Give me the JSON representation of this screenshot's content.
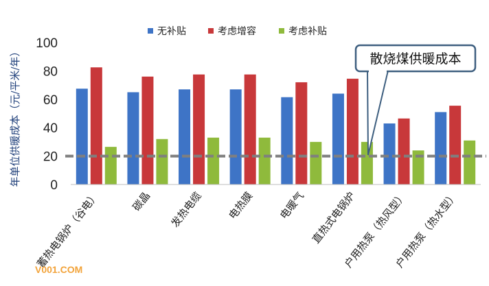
{
  "chart_data": {
    "type": "bar",
    "ylabel": "年单位供暖成本（元/平米/年）",
    "ylim": [
      0,
      100
    ],
    "yticks": [
      0,
      20,
      40,
      60,
      80,
      100
    ],
    "categories": [
      "蓄热电锅炉（谷电）",
      "碳晶",
      "发热电缆",
      "电热膜",
      "电暖气",
      "直热式电锅炉",
      "户用热泵（热风型）",
      "户用热泵（热水型）"
    ],
    "series": [
      {
        "name": "无补贴",
        "color": "#3e74c6",
        "values": [
          67.5,
          65,
          67,
          67,
          61.5,
          64,
          43,
          51
        ]
      },
      {
        "name": "考虑增容",
        "color": "#c8383a",
        "values": [
          82.5,
          76,
          77.5,
          77.5,
          72,
          74.5,
          46.5,
          55.5
        ]
      },
      {
        "name": "考虑补贴",
        "color": "#8fba3c",
        "values": [
          26.5,
          32,
          33,
          33,
          30,
          30,
          24,
          31
        ]
      }
    ],
    "reference_line": {
      "value": 20,
      "label": "散烧煤供暖成本",
      "color": "#7f7f7f"
    },
    "legend_position": "top",
    "grid": false
  },
  "watermark": "V001.COM"
}
